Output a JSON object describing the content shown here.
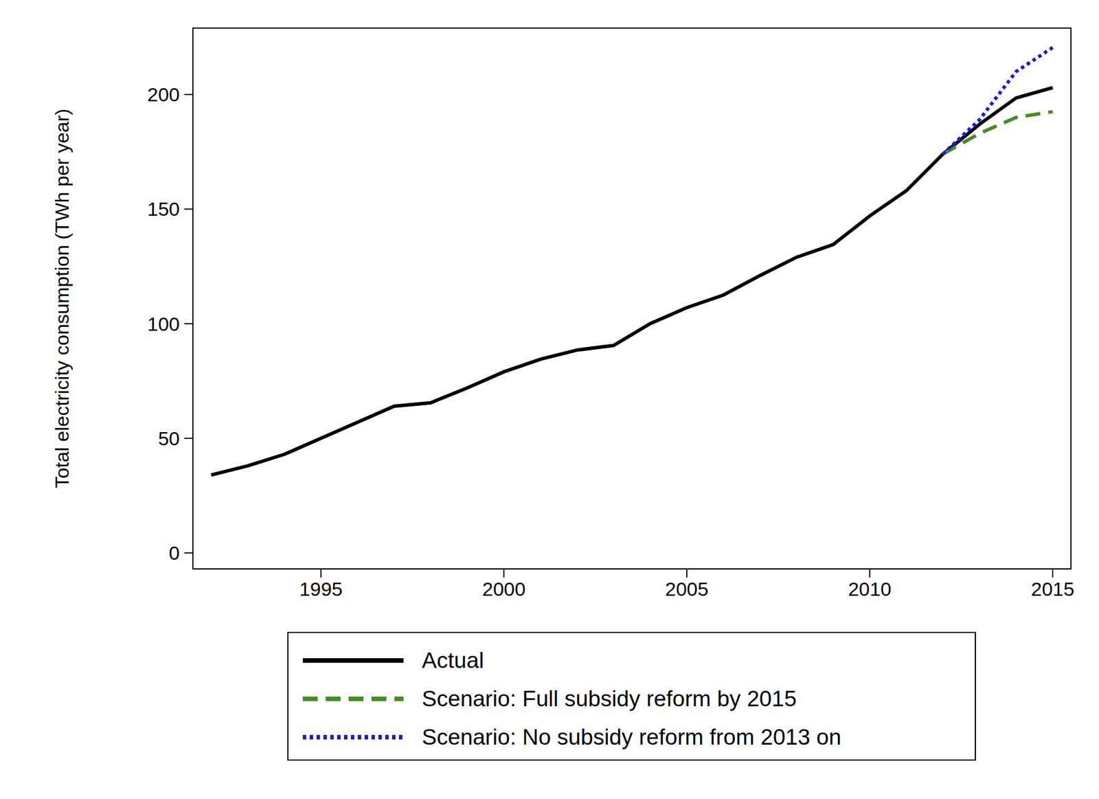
{
  "chart_data": {
    "type": "line",
    "y_label": "Total electricity consumption (TWh per year)",
    "x": [
      1992,
      1993,
      1994,
      1995,
      1996,
      1997,
      1998,
      1999,
      2000,
      2001,
      2002,
      2003,
      2004,
      2005,
      2006,
      2007,
      2008,
      2009,
      2010,
      2011,
      2012,
      2013,
      2014,
      2015
    ],
    "series": [
      {
        "name": "Actual",
        "color": "#000000",
        "line_style": "solid",
        "values": [
          34,
          38,
          43,
          50,
          57,
          64,
          65.5,
          72,
          79,
          84.5,
          88.5,
          90.5,
          100,
          107,
          112.5,
          121,
          129,
          134.5,
          147,
          158,
          174,
          187,
          198.5,
          203
        ]
      },
      {
        "name": "Scenario: Full subsidy reform by 2015",
        "color": "#4a8a2a",
        "line_style": "dashed",
        "values": [
          null,
          null,
          null,
          null,
          null,
          null,
          null,
          null,
          null,
          null,
          null,
          null,
          null,
          null,
          null,
          null,
          null,
          null,
          null,
          null,
          174,
          183,
          190,
          192.5
        ]
      },
      {
        "name": "Scenario: No subsidy reform from 2013 on",
        "color": "#1a1ae0",
        "line_style": "dotted",
        "values": [
          null,
          null,
          null,
          null,
          null,
          null,
          null,
          null,
          null,
          null,
          null,
          null,
          null,
          null,
          null,
          null,
          null,
          null,
          null,
          null,
          174,
          189,
          210,
          220.5
        ]
      }
    ],
    "xlim": [
      1991.5,
      2015.5
    ],
    "xticks": [
      1995,
      2000,
      2005,
      2010,
      2015
    ],
    "ylim": [
      -7,
      229
    ],
    "yticks": [
      0,
      50,
      100,
      150,
      200
    ],
    "grid": false,
    "legend": "bottom"
  }
}
